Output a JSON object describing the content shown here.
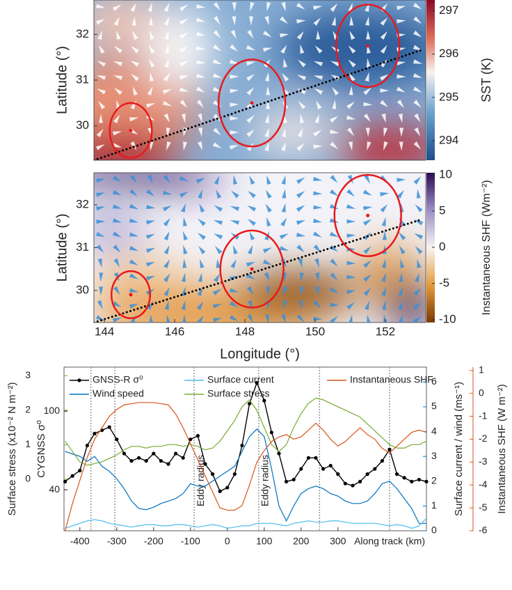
{
  "chart_data": [
    {
      "type": "heatmap",
      "ylabel": "Latitude (°)",
      "colorbar_label": "SST (K)",
      "xlim": [
        143.7,
        153.15
      ],
      "ylim": [
        29.25,
        32.75
      ],
      "yticks": [
        30,
        31,
        32
      ],
      "clim": [
        293.55,
        297.25
      ],
      "cticks": [
        294,
        295,
        296,
        297
      ],
      "eddies": {
        "lon": [
          144.75,
          148.2,
          151.5
        ],
        "lat": [
          29.9,
          30.5,
          31.75
        ],
        "radius": [
          0.6,
          0.95,
          0.9
        ]
      },
      "track": {
        "lon": [
          143.7,
          153.0
        ],
        "lat": [
          29.25,
          31.65
        ]
      },
      "eddy_color": "#e8191c",
      "arrow_color": "#ffffff"
    },
    {
      "type": "heatmap",
      "ylabel": "Latitude (°)",
      "xlabel": "Longitude (°)",
      "colorbar_label": "Instantaneous SHF (Wm⁻²)",
      "xlim": [
        143.7,
        153.15
      ],
      "ylim": [
        29.25,
        32.75
      ],
      "yticks": [
        30,
        31,
        32
      ],
      "xticks": [
        144,
        146,
        148,
        150,
        152
      ],
      "clim": [
        -10.4,
        10.3
      ],
      "cticks": [
        -10,
        -5,
        0,
        5,
        10
      ],
      "eddies": {
        "lon": [
          144.75,
          148.2,
          151.5
        ],
        "lat": [
          29.9,
          30.5,
          31.75
        ],
        "radius": [
          0.55,
          0.9,
          0.95
        ]
      },
      "track": {
        "lon": [
          143.7,
          153.0
        ],
        "lat": [
          29.25,
          31.65
        ]
      },
      "eddy_color": "#e8191c",
      "arrow_color": "#3a8fd8"
    },
    {
      "type": "line",
      "xlabel": "Along track (km)",
      "x": [
        -440,
        -420,
        -400,
        -380,
        -360,
        -340,
        -320,
        -300,
        -280,
        -260,
        -240,
        -220,
        -200,
        -180,
        -160,
        -140,
        -120,
        -100,
        -80,
        -60,
        -40,
        -20,
        0,
        20,
        40,
        60,
        80,
        100,
        120,
        140,
        160,
        180,
        200,
        220,
        240,
        260,
        280,
        300,
        320,
        340,
        360,
        380,
        400,
        420,
        440,
        460,
        480,
        500,
        520,
        540
      ],
      "xlim": [
        -443,
        540
      ],
      "xticks": [
        -400,
        -300,
        -200,
        -100,
        0,
        100,
        200,
        300
      ],
      "axes": [
        {
          "label": "Surface stress (x10⁻² N m⁻²)",
          "color": "#77ac30",
          "ylim": [
            -1.5,
            3.25
          ],
          "yticks": [
            0,
            1,
            2,
            3
          ],
          "side": "left"
        },
        {
          "label": "CYGNSS σ⁰",
          "color": "#000000",
          "ylim": [
            24.8,
            167
          ],
          "yticks": [
            40,
            100
          ],
          "log": true,
          "side": "left"
        },
        {
          "label": "Surface current / wind (ms⁻¹)",
          "color": "#0072bd",
          "ylim": [
            0,
            6.6
          ],
          "yticks": [
            0,
            1,
            2,
            3,
            4,
            5,
            6
          ],
          "side": "right"
        },
        {
          "label": "Instantaneous SHF (W m⁻²)",
          "color": "#d95319",
          "ylim": [
            -6,
            1.15
          ],
          "yticks": [
            1,
            0,
            -1,
            -2,
            -3,
            -4,
            -5,
            -6
          ],
          "side": "right"
        }
      ],
      "series": [
        {
          "name": "GNSS-R σ⁰",
          "color": "#000000",
          "axis": 1,
          "markers": true,
          "values": [
            44,
            47,
            50,
            67,
            77,
            80,
            83,
            72,
            61,
            56,
            58,
            56,
            61,
            56,
            54,
            61,
            58,
            72,
            75,
            54,
            48,
            39.3,
            41,
            48,
            67,
            109,
            139,
            113,
            78,
            61,
            44,
            45,
            51,
            58,
            58,
            51,
            53,
            48,
            43,
            42,
            44,
            48,
            51,
            56,
            64,
            48,
            46,
            44,
            45,
            44
          ]
        },
        {
          "name": "Wind speed",
          "color": "#0072bd",
          "axis": 2,
          "values": [
            3.2,
            3.1,
            3.0,
            2.8,
            3.0,
            2.6,
            2.4,
            2.1,
            1.7,
            1.2,
            0.9,
            0.85,
            0.95,
            1.1,
            1.2,
            1.3,
            1.5,
            1.9,
            1.8,
            1.8,
            2.0,
            2.2,
            2.4,
            2.6,
            3.2,
            3.8,
            4.1,
            3.8,
            2.5,
            1.0,
            0.4,
            1.0,
            1.5,
            1.7,
            1.8,
            1.7,
            1.5,
            1.4,
            1.2,
            1.1,
            1.1,
            1.2,
            1.5,
            1.9,
            2.0,
            1.7,
            1.3,
            0.9,
            0.3,
            0.3
          ]
        },
        {
          "name": "Surface current",
          "color": "#4dbeee",
          "axis": 2,
          "values": [
            0.1,
            0.2,
            0.3,
            0.4,
            0.45,
            0.4,
            0.3,
            0.25,
            0.2,
            0.15,
            0.2,
            0.25,
            0.25,
            0.2,
            0.2,
            0.25,
            0.25,
            0.2,
            0.15,
            0.2,
            0.25,
            0.2,
            0.1,
            0.15,
            0.2,
            0.2,
            0.3,
            0.3,
            0.3,
            0.25,
            0.2,
            0.3,
            0.35,
            0.4,
            0.35,
            0.35,
            0.4,
            0.4,
            0.35,
            0.3,
            0.3,
            0.3,
            0.3,
            0.25,
            0.2,
            0.25,
            0.2,
            0.1,
            0.2,
            0.5
          ]
        },
        {
          "name": "Surface stress",
          "color": "#77ac30",
          "axis": 0,
          "values": [
            1.1,
            0.8,
            0.5,
            0.4,
            0.45,
            0.5,
            0.6,
            0.7,
            0.85,
            0.95,
            0.95,
            0.9,
            0.95,
            0.95,
            1.0,
            1.0,
            0.95,
            1.0,
            0.95,
            0.85,
            0.9,
            1.1,
            1.4,
            1.7,
            2.1,
            2.3,
            2.0,
            1.5,
            1.0,
            0.8,
            1.0,
            1.5,
            1.9,
            2.2,
            2.35,
            2.3,
            2.2,
            2.1,
            2.0,
            1.9,
            1.8,
            1.6,
            1.4,
            1.2,
            1.0,
            0.9,
            0.9,
            1.0,
            1.0,
            1.1
          ]
        },
        {
          "name": "Instantaneous SHF",
          "color": "#d95319",
          "axis": 3,
          "values": [
            -6,
            -4.8,
            -3.8,
            -2.8,
            -2.0,
            -1.5,
            -1.0,
            -0.7,
            -0.5,
            -0.45,
            -0.4,
            -0.4,
            -0.4,
            -0.45,
            -0.5,
            -0.9,
            -1.5,
            -2.2,
            -2.9,
            -3.6,
            -4.3,
            -5.0,
            -5.1,
            -5.1,
            -4.9,
            -4.0,
            -3.0,
            -2.5,
            -2.1,
            -1.9,
            -1.8,
            -2.0,
            -1.9,
            -1.6,
            -1.3,
            -1.6,
            -2.0,
            -2.3,
            -2.1,
            -1.8,
            -1.5,
            -1.8,
            -2.0,
            -2.4,
            -2.6,
            -2.3,
            -2.0,
            -1.7,
            -1.6,
            -1.7
          ]
        }
      ],
      "vlines": [
        -370,
        -305,
        -90,
        85,
        250,
        440
      ],
      "annotations": [
        {
          "text": "Eddy radius",
          "x": -90
        },
        {
          "text": "Eddy radius",
          "x": 85
        }
      ]
    }
  ]
}
